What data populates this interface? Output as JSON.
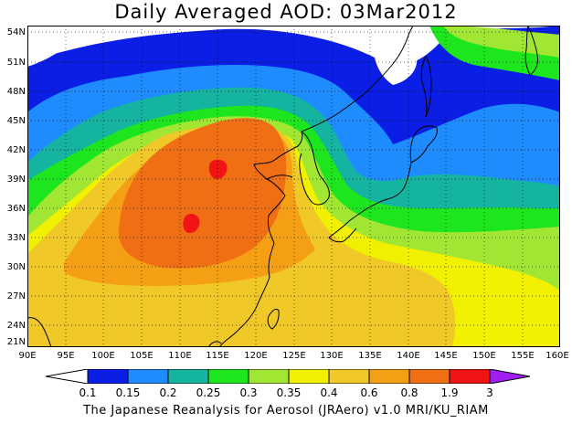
{
  "title": "Daily Averaged AOD: 03Mar2012",
  "credit": "The Japanese Reanalysis for Aerosol (JRAero) v1.0 MRI/KU_RIAM",
  "lat_labels": [
    "54N",
    "51N",
    "48N",
    "45N",
    "42N",
    "39N",
    "36N",
    "33N",
    "30N",
    "27N",
    "24N",
    "21N"
  ],
  "lon_labels": [
    "90E",
    "95E",
    "100E",
    "105E",
    "110E",
    "115E",
    "120E",
    "125E",
    "130E",
    "135E",
    "140E",
    "145E",
    "150E",
    "155E",
    "160E"
  ],
  "colorbar": {
    "labels": [
      "0.1",
      "0.15",
      "0.2",
      "0.25",
      "0.3",
      "0.35",
      "0.4",
      "0.6",
      "0.8",
      "1.9",
      "3"
    ],
    "colors": [
      "#ffffff",
      "#0a1ee6",
      "#1e8cff",
      "#14b4a0",
      "#1ee61e",
      "#a0e632",
      "#f0f000",
      "#f0c828",
      "#f5a014",
      "#f06e14",
      "#f01414",
      "#a01ef0"
    ]
  },
  "map_colors": {
    "c0": "#ffffff",
    "c1": "#0a1ee6",
    "c2": "#1e8cff",
    "c3": "#14b4a0",
    "c4": "#1ee61e",
    "c5": "#a0e632",
    "c6": "#f0f000",
    "c7": "#f0c828",
    "c8": "#f5a014",
    "c9": "#f06e14",
    "c10": "#f01414"
  }
}
